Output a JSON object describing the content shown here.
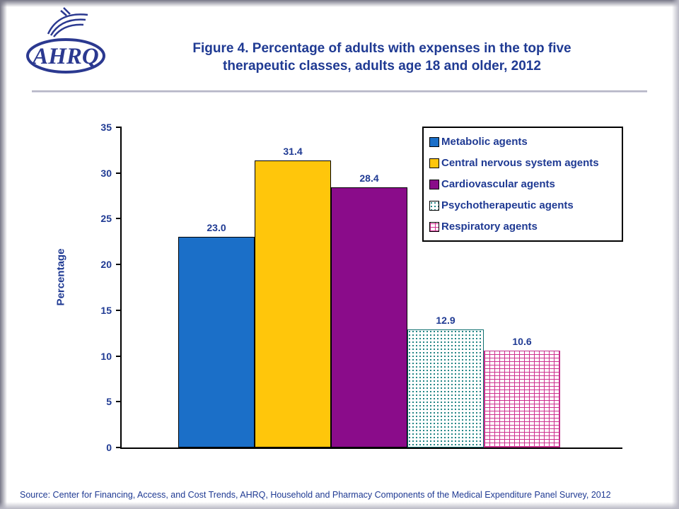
{
  "header": {
    "logo_text": "AHRQ",
    "title_line1": "Figure 4. Percentage of adults with expenses in the top five",
    "title_line2": "therapeutic classes, adults age 18 and older, 2012"
  },
  "chart_data": {
    "type": "bar",
    "title": "Figure 4. Percentage of adults with expenses in the top five therapeutic classes, adults age 18 and older, 2012",
    "xlabel": "",
    "ylabel": "Percentage",
    "ylim": [
      0,
      35
    ],
    "yticks": [
      0,
      5,
      10,
      15,
      20,
      25,
      30,
      35
    ],
    "grid": false,
    "legend_position": "top-right",
    "categories": [
      "Metabolic agents",
      "Central nervous system agents",
      "Cardiovascular agents",
      "Psychotherapeutic agents",
      "Respiratory agents"
    ],
    "values": [
      23.0,
      31.4,
      28.4,
      12.9,
      10.6
    ],
    "value_labels": [
      "23.0",
      "31.4",
      "28.4",
      "12.9",
      "10.6"
    ],
    "series_styles": [
      {
        "pattern": "solid",
        "color": "#1B6FC8",
        "border": "#000000"
      },
      {
        "pattern": "solid",
        "color": "#FFC60B",
        "border": "#000000"
      },
      {
        "pattern": "solid",
        "color": "#8A0C8A",
        "border": "#000000"
      },
      {
        "pattern": "dots",
        "color": "#127C7C",
        "border": "#0F6F6F"
      },
      {
        "pattern": "bricks",
        "color": "#CE2F8F",
        "border": "#C0328C"
      }
    ]
  },
  "footer": {
    "source": "Source: Center for Financing, Access, and Cost Trends, AHRQ, Household and Pharmacy Components of the Medical Expenditure Panel Survey,  2012"
  },
  "colors": {
    "title_text": "#1F3A93",
    "logo_blue": "#2B3990",
    "axis": "#000000"
  }
}
